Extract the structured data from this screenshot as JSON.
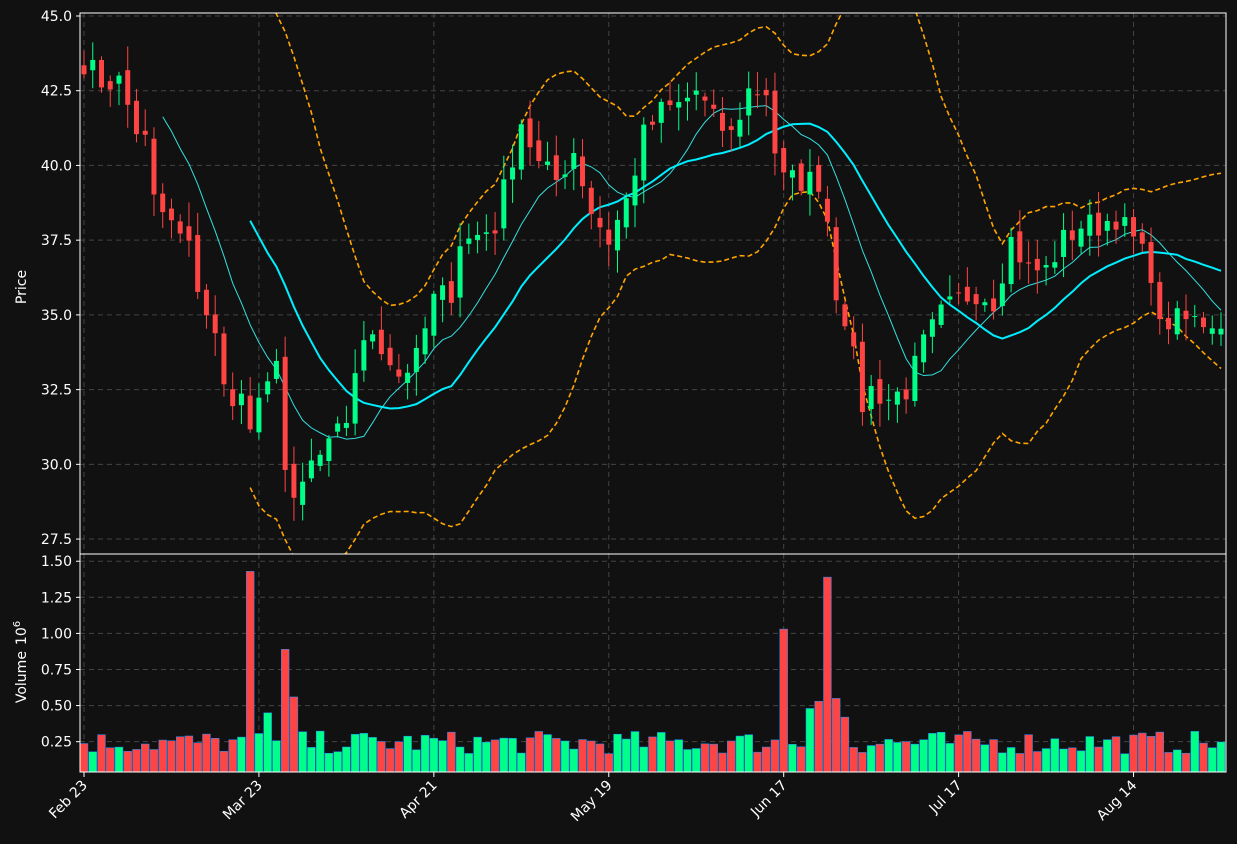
{
  "chart_data": {
    "type": "candlestick",
    "colors": {
      "background": "#111111",
      "up": "#00ff88",
      "down": "#ff4444",
      "ma_short": "#33e0e0",
      "ma_long": "#00eeff",
      "bands": "#ffa500",
      "grid": "#444444",
      "text": "#ffffff"
    },
    "grid": true,
    "price_panel": {
      "ylabel": "Price",
      "ylim": [
        27.0,
        45.1
      ],
      "yticks": [
        "27.5",
        "30.0",
        "32.5",
        "35.0",
        "37.5",
        "40.0",
        "42.5",
        "45.0"
      ]
    },
    "volume_panel": {
      "ylabel": "Volume",
      "ylabel_exponent": "6",
      "ylim": [
        0.04,
        1.55
      ],
      "yticks": [
        "0.25",
        "0.50",
        "0.75",
        "1.00",
        "1.25",
        "1.50"
      ]
    },
    "xticks": [
      {
        "index": 0,
        "label": "Feb 23"
      },
      {
        "index": 20,
        "label": "Mar 23"
      },
      {
        "index": 40,
        "label": "Apr 21"
      },
      {
        "index": 60,
        "label": "May 19"
      },
      {
        "index": 80,
        "label": "Jun 17"
      },
      {
        "index": 100,
        "label": "Jul 17"
      },
      {
        "index": 120,
        "label": "Aug 14"
      }
    ],
    "ohlc_keyframes": [
      [
        0,
        43.5
      ],
      [
        2,
        42.8
      ],
      [
        4,
        42.8
      ],
      [
        6,
        41.2
      ],
      [
        7,
        40.8
      ],
      [
        8,
        38.8
      ],
      [
        10,
        38.0
      ],
      [
        12,
        37.2
      ],
      [
        13,
        36.0
      ],
      [
        15,
        34.2
      ],
      [
        16,
        32.5
      ],
      [
        18,
        32.2
      ],
      [
        19,
        31.2
      ],
      [
        21,
        32.5
      ],
      [
        22,
        33.8
      ],
      [
        23,
        29.8
      ],
      [
        24,
        28.5
      ],
      [
        26,
        30.0
      ],
      [
        28,
        30.5
      ],
      [
        30,
        31.5
      ],
      [
        31,
        33.2
      ],
      [
        33,
        34.5
      ],
      [
        35,
        33.5
      ],
      [
        36,
        33.0
      ],
      [
        38,
        33.5
      ],
      [
        40,
        35.5
      ],
      [
        42,
        35.8
      ],
      [
        43,
        37.5
      ],
      [
        44,
        37.5
      ],
      [
        47,
        38.0
      ],
      [
        50,
        41.5
      ],
      [
        52,
        40.0
      ],
      [
        54,
        39.5
      ],
      [
        56,
        40.5
      ],
      [
        58,
        38.5
      ],
      [
        60,
        37.5
      ],
      [
        62,
        38.8
      ],
      [
        64,
        41.0
      ],
      [
        66,
        41.8
      ],
      [
        68,
        42.0
      ],
      [
        70,
        42.5
      ],
      [
        72,
        41.5
      ],
      [
        74,
        41.0
      ],
      [
        76,
        42.5
      ],
      [
        78,
        42.5
      ],
      [
        79,
        40.5
      ],
      [
        80,
        39.5
      ],
      [
        82,
        39.5
      ],
      [
        84,
        39.5
      ],
      [
        85,
        38.2
      ],
      [
        86,
        35.8
      ],
      [
        87,
        35.0
      ],
      [
        88,
        33.5
      ],
      [
        89,
        32.0
      ],
      [
        90,
        32.5
      ],
      [
        92,
        32.2
      ],
      [
        94,
        32.5
      ],
      [
        96,
        34.0
      ],
      [
        98,
        35.0
      ],
      [
        100,
        35.5
      ],
      [
        102,
        35.8
      ],
      [
        104,
        35.5
      ],
      [
        106,
        37.5
      ],
      [
        108,
        36.5
      ],
      [
        110,
        36.5
      ],
      [
        112,
        37.5
      ],
      [
        114,
        38.0
      ],
      [
        116,
        38.0
      ],
      [
        118,
        38.3
      ],
      [
        120,
        37.5
      ],
      [
        122,
        36.5
      ],
      [
        123,
        34.5
      ],
      [
        124,
        34.8
      ]
    ],
    "volume_spikes": [
      {
        "index": 19,
        "value": 1.43
      },
      {
        "index": 21,
        "value": 0.45
      },
      {
        "index": 23,
        "value": 0.89
      },
      {
        "index": 24,
        "value": 0.56
      },
      {
        "index": 80,
        "value": 1.03
      },
      {
        "index": 83,
        "value": 0.48
      },
      {
        "index": 84,
        "value": 0.53
      },
      {
        "index": 85,
        "value": 1.39
      },
      {
        "index": 86,
        "value": 0.55
      },
      {
        "index": 87,
        "value": 0.42
      }
    ],
    "volume_baseline": 0.22
  }
}
